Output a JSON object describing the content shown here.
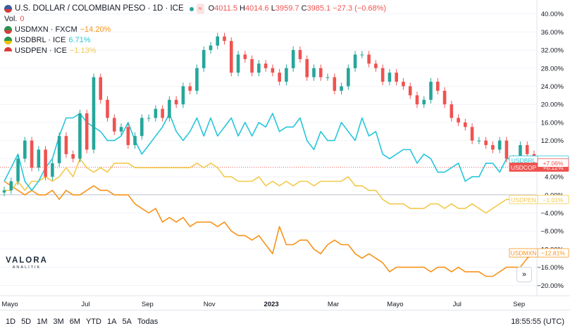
{
  "header": {
    "title": "U.S. DOLLAR / COLOMBIAN PESO · 1D · ICE",
    "mini_a": "≈",
    "ohlc": {
      "o_label": "O",
      "o": "4011.5",
      "h_label": "H",
      "h": "4014.6",
      "l_label": "L",
      "l": "3959.7",
      "c_label": "C",
      "c": "3985.1",
      "change": "−27.3 (−0.68%)"
    },
    "vol_label": "Vol.",
    "vol_value": "0",
    "series_legend": [
      {
        "label": "USDMXN · FXCM",
        "change": "−14.20%"
      },
      {
        "label": "USDBRL · ICE",
        "change": "6.71%"
      },
      {
        "label": "USDPEN · ICE",
        "change": "−1.13%"
      }
    ]
  },
  "logo": {
    "word": "VALORA",
    "sub": "ANALITIK"
  },
  "range_buttons": [
    "1D",
    "5D",
    "1M",
    "3M",
    "6M",
    "YTD",
    "1A",
    "5A",
    "Todas"
  ],
  "clock": "18:55:55 (UTC)",
  "scroll_button": "»",
  "icons": [
    "flag-us-icon",
    "flag-mx-icon",
    "flag-br-icon",
    "flag-pe-icon",
    "scroll-right-icon"
  ],
  "chart_data": {
    "type": "line",
    "x_ticks": [
      "Mayo",
      "Jul",
      "Sep",
      "Nov",
      "2023",
      "Mar",
      "Mayo",
      "Jul",
      "Sep"
    ],
    "y_ticks": [
      "40.00%",
      "36.00%",
      "32.00%",
      "28.00%",
      "24.00%",
      "20.00%",
      "16.00%",
      "12.00%",
      "8.00%",
      "4.00%",
      "0.00%",
      "−4.00%",
      "−8.00%",
      "−12.00%",
      "−16.00%",
      "−20.00%"
    ],
    "ylim": [
      -21.5,
      41.5
    ],
    "colors": {
      "up": "#26a69a",
      "down": "#ef5350",
      "brl": "#26c6da",
      "pen": "#f2c94c",
      "mxn": "#f7931a",
      "cop_tag": "#ef5350"
    },
    "series_tags": [
      {
        "name": "USDBRL",
        "value": 7.67,
        "tag": "+7.67%"
      },
      {
        "name": "USDMXN",
        "value": -12.81,
        "tag": "−12.81%"
      },
      {
        "name": "USDPEN",
        "value": -1.01,
        "tag": "−1.01%"
      },
      {
        "name": "USDCOP",
        "value": 6.12,
        "tag": "+6.12%"
      },
      {
        "name": "USDCOP_prev",
        "value": 7.06,
        "tag": "+7.06%"
      }
    ],
    "cop": [
      1,
      3,
      8,
      12,
      6,
      10,
      4,
      7,
      13,
      9,
      8,
      18,
      10,
      26,
      21,
      17,
      14,
      15,
      11,
      13,
      17,
      17,
      19,
      17,
      21,
      20,
      24,
      23,
      28,
      32,
      33,
      35,
      34,
      27,
      31,
      30,
      27,
      29,
      28,
      27,
      25,
      28,
      32,
      30,
      26,
      28,
      26,
      26,
      23,
      24,
      28,
      31,
      31,
      29,
      28,
      25,
      27,
      25,
      24,
      22,
      20,
      21,
      25,
      23,
      20,
      17,
      16,
      15,
      12,
      12,
      11,
      10,
      12,
      8,
      7,
      11,
      9,
      6
    ],
    "brl": [
      3,
      6,
      9,
      3,
      1,
      3,
      6,
      8,
      13,
      17,
      17,
      18,
      16,
      15,
      14,
      12,
      12,
      13,
      16,
      12,
      9,
      11,
      13,
      15,
      18,
      14,
      12,
      14,
      17,
      13,
      17,
      13,
      15,
      17,
      13,
      16,
      13,
      16,
      15,
      18,
      14,
      15,
      15,
      17,
      12,
      10,
      14,
      12,
      12,
      16,
      14,
      12,
      17,
      13,
      14,
      9,
      8,
      9,
      10,
      10,
      7,
      9,
      8,
      5,
      5,
      6,
      7,
      3,
      4,
      4,
      7,
      7,
      5,
      8,
      8,
      8,
      8,
      8
    ],
    "pen": [
      1,
      1,
      3,
      1,
      3,
      3,
      4,
      3,
      4,
      6,
      4,
      8,
      6,
      5,
      6,
      5,
      7,
      7,
      7,
      6,
      6,
      6,
      6,
      6,
      6,
      6,
      6,
      6,
      7,
      6,
      7,
      6,
      4,
      4,
      3,
      3,
      3,
      4,
      2,
      3,
      2,
      3,
      2,
      3,
      3,
      2,
      3,
      3,
      3,
      3,
      4,
      2,
      2,
      1,
      1,
      -1,
      -2,
      -2,
      -2,
      -3,
      -3,
      -3,
      -2,
      -2,
      -3,
      -2,
      -3,
      -3,
      -2,
      -3,
      -4,
      -3,
      -2,
      -1,
      -1,
      -1,
      -1,
      -1
    ],
    "mxn": [
      3,
      2,
      1,
      0,
      1,
      0,
      0,
      1,
      -1,
      1,
      0,
      0,
      1,
      2,
      1,
      1,
      0,
      0,
      0,
      -2,
      -3,
      -4,
      -3,
      -6,
      -5,
      -6,
      -5,
      -7,
      -6,
      -6,
      -6,
      -7,
      -6,
      -8,
      -9,
      -9,
      -10,
      -9,
      -11,
      -13,
      -7,
      -11,
      -11,
      -10,
      -10,
      -12,
      -13,
      -11,
      -10,
      -11,
      -11,
      -13,
      -14,
      -13,
      -14,
      -15,
      -17,
      -16,
      -16,
      -16,
      -16,
      -16,
      -17,
      -16,
      -16,
      -17,
      -16,
      -17,
      -17,
      -17,
      -18,
      -18,
      -17,
      -16,
      -16,
      -16,
      -14,
      -13
    ]
  }
}
